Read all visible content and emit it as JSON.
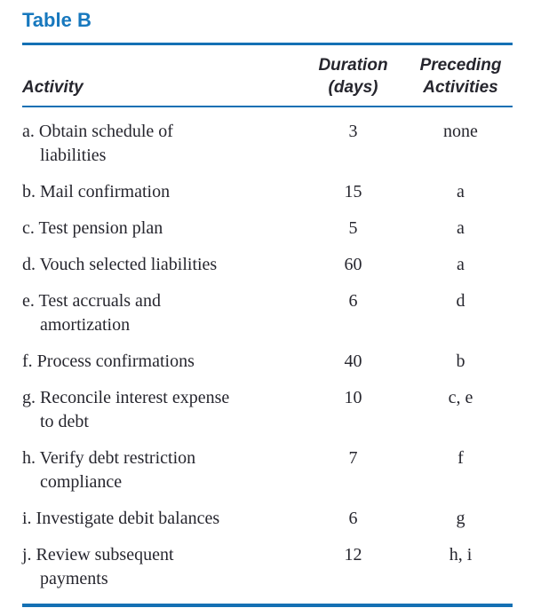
{
  "title": "Table B",
  "colors": {
    "accent_blue": "#1778be",
    "rule_blue": "#1470b4",
    "text": "#26262e",
    "background": "#ffffff"
  },
  "table": {
    "headers": {
      "activity": "Activity",
      "duration": "Duration\n(days)",
      "preceding": "Preceding\nActivities"
    },
    "rows": [
      {
        "activity": "a. Obtain schedule of\nliabilities",
        "duration": "3",
        "preceding": "none"
      },
      {
        "activity": "b. Mail confirmation",
        "duration": "15",
        "preceding": "a"
      },
      {
        "activity": "c. Test pension plan",
        "duration": "5",
        "preceding": "a"
      },
      {
        "activity": "d. Vouch selected liabilities",
        "duration": "60",
        "preceding": "a"
      },
      {
        "activity": "e. Test accruals and\namortization",
        "duration": "6",
        "preceding": "d"
      },
      {
        "activity": "f. Process confirmations",
        "duration": "40",
        "preceding": "b"
      },
      {
        "activity": "g. Reconcile interest expense\nto debt",
        "duration": "10",
        "preceding": "c, e"
      },
      {
        "activity": "h. Verify debt restriction\ncompliance",
        "duration": "7",
        "preceding": "f"
      },
      {
        "activity": "i. Investigate debit balances",
        "duration": "6",
        "preceding": "g"
      },
      {
        "activity": "j. Review subsequent\npayments",
        "duration": "12",
        "preceding": "h, i"
      }
    ]
  }
}
